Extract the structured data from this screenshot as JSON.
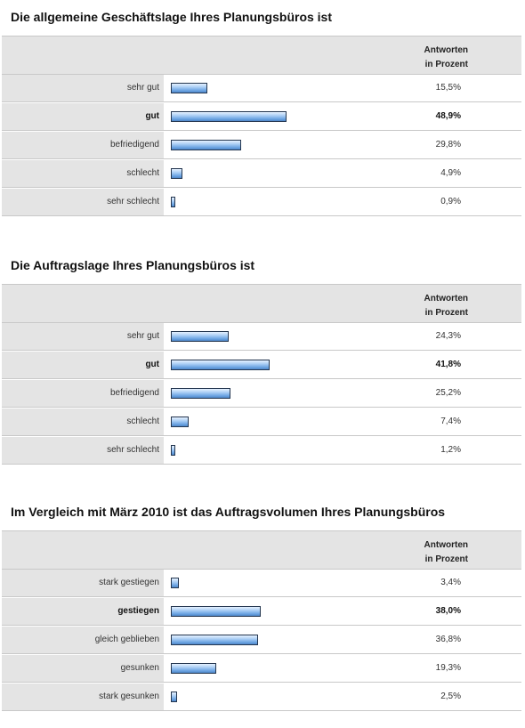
{
  "header": {
    "line1": "Antworten",
    "line2": "in Prozent"
  },
  "colors": {
    "bar_fill": "#8fbdf0",
    "bar_border": "#24364f",
    "label_bg": "#e4e4e4"
  },
  "chart_data": [
    {
      "type": "bar",
      "title": "Die allgemeine Geschäftslage Ihres Planungsbüros ist",
      "orientation": "horizontal",
      "categories": [
        "sehr gut",
        "gut",
        "befriedigend",
        "schlecht",
        "sehr schlecht"
      ],
      "values": [
        15.5,
        48.9,
        29.8,
        4.9,
        0.9
      ],
      "labels": [
        "15,5%",
        "48,9%",
        "29,8%",
        "4,9%",
        "0,9%"
      ],
      "highlight": "gut",
      "unit": "%"
    },
    {
      "type": "bar",
      "title": "Die Auftragslage Ihres Planungsbüros ist",
      "orientation": "horizontal",
      "categories": [
        "sehr gut",
        "gut",
        "befriedigend",
        "schlecht",
        "sehr schlecht"
      ],
      "values": [
        24.3,
        41.8,
        25.2,
        7.4,
        1.2
      ],
      "labels": [
        "24,3%",
        "41,8%",
        "25,2%",
        "7,4%",
        "1,2%"
      ],
      "highlight": "gut",
      "unit": "%"
    },
    {
      "type": "bar",
      "title": "Im Vergleich mit März 2010 ist das Auftragsvolumen Ihres Planungsbüros",
      "orientation": "horizontal",
      "categories": [
        "stark gestiegen",
        "gestiegen",
        "gleich geblieben",
        "gesunken",
        "stark gesunken"
      ],
      "values": [
        3.4,
        38.0,
        36.8,
        19.3,
        2.5
      ],
      "labels": [
        "3,4%",
        "38,0%",
        "36,8%",
        "19,3%",
        "2,5%"
      ],
      "highlight": "gestiegen",
      "unit": "%"
    }
  ]
}
